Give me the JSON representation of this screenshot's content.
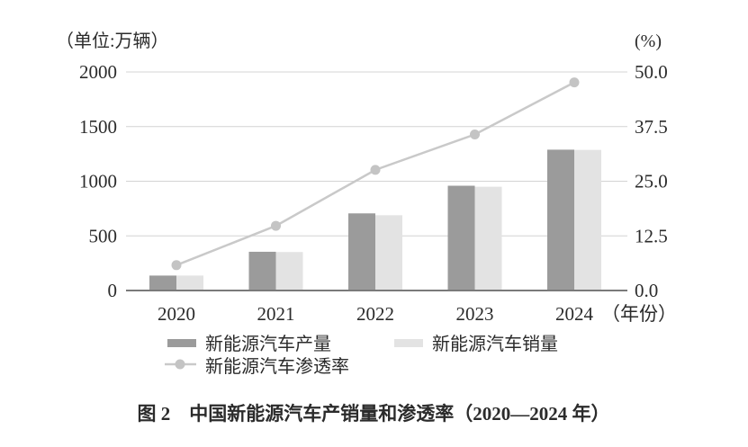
{
  "figure": {
    "left_axis_unit": "（单位:万辆）",
    "right_axis_unit": "(%)",
    "x_axis_suffix": "（年份）",
    "caption": "图 2　中国新能源汽车产销量和渗透率（2020—2024 年）"
  },
  "legend": {
    "production": "新能源汽车产量",
    "sales": "新能源汽车销量",
    "penetration": "新能源汽车渗透率"
  },
  "colors": {
    "bar_production": "#9b9b9b",
    "bar_sales": "#e3e3e3",
    "line_penetration": "#c9c9c9",
    "dot_penetration": "#c4c4c4",
    "gridline": "#d4d4d4",
    "axis_line": "#7a7a7a",
    "text": "#2b2b2b",
    "background": "#ffffff"
  },
  "chart_data": {
    "type": "bar+line",
    "title": "图 2　中国新能源汽车产销量和渗透率（2020—2024 年）",
    "categories": [
      "2020",
      "2021",
      "2022",
      "2023",
      "2024"
    ],
    "series": [
      {
        "name": "新能源汽车产量",
        "type": "bar",
        "axis": "left",
        "color": "#9b9b9b",
        "values": [
          136.6,
          354.5,
          705.8,
          958.7,
          1288.8
        ]
      },
      {
        "name": "新能源汽车销量",
        "type": "bar",
        "axis": "left",
        "color": "#e3e3e3",
        "values": [
          136.7,
          352.1,
          688.7,
          949.5,
          1286.6
        ]
      },
      {
        "name": "新能源汽车渗透率",
        "type": "line",
        "axis": "right",
        "color": "#c9c9c9",
        "values": [
          5.8,
          14.8,
          27.6,
          35.7,
          47.6
        ]
      }
    ],
    "left_axis": {
      "label": "（单位:万辆）",
      "min": 0,
      "max": 2000,
      "ticks": [
        0,
        500,
        1000,
        1500,
        2000
      ],
      "tick_labels": [
        "0",
        "500",
        "1000",
        "1500",
        "2000"
      ]
    },
    "right_axis": {
      "label": "(%)",
      "min": 0,
      "max": 50,
      "ticks": [
        0,
        12.5,
        25,
        37.5,
        50
      ],
      "tick_labels": [
        "0.0",
        "12.5",
        "25.0",
        "37.5",
        "50.0"
      ]
    },
    "x_axis": {
      "label": "（年份）"
    },
    "grid": true,
    "legend_position": "bottom"
  }
}
